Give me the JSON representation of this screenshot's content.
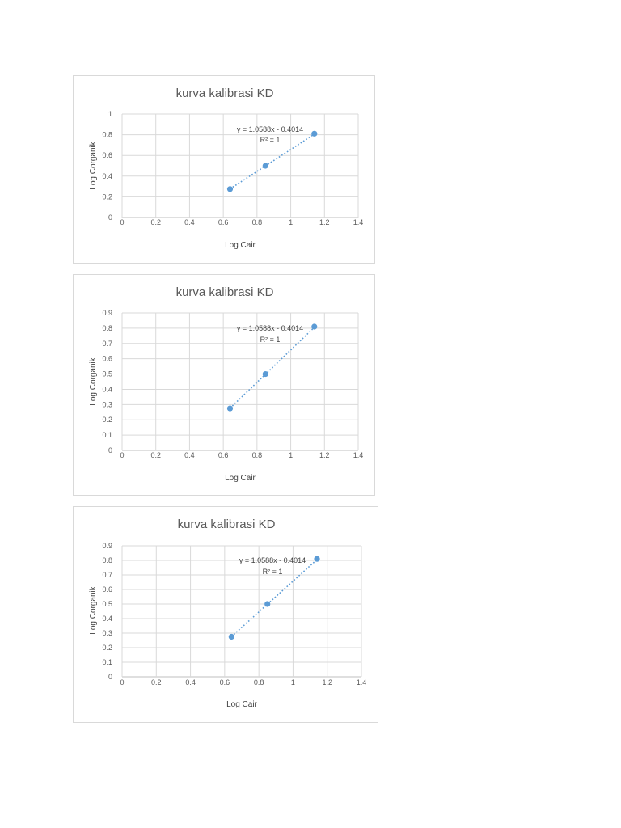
{
  "colors": {
    "series": "#5b9bd5",
    "grid": "#d9d9d9",
    "text": "#595959",
    "border": "#d9d9d9"
  },
  "chart_data": [
    {
      "type": "scatter",
      "title": "kurva kalibrasi KD",
      "xlabel": "Log Cair",
      "ylabel": "Log Corganik",
      "xlim": [
        0,
        1.4
      ],
      "ylim": [
        0,
        1
      ],
      "xticks": [
        0,
        0.2,
        0.4,
        0.6,
        0.8,
        1,
        1.2,
        1.4
      ],
      "xtick_labels": [
        "0",
        "0.2",
        "0.4",
        "0.6",
        "0.8",
        "1",
        "1.2",
        "1.4"
      ],
      "yticks": [
        0,
        0.2,
        0.4,
        0.6,
        0.8,
        1
      ],
      "ytick_labels": [
        "0",
        "0.2",
        "0.4",
        "0.6",
        "0.8",
        "1"
      ],
      "grid": true,
      "x": [
        0.64,
        0.85,
        1.14
      ],
      "y": [
        0.275,
        0.5,
        0.81
      ],
      "trendline": {
        "type": "linear",
        "slope": 1.0588,
        "intercept": -0.4014,
        "style": "dotted"
      },
      "equation_text": "y = 1.0588x - 0.4014",
      "r2_text": "R² = 1"
    },
    {
      "type": "scatter",
      "title": "kurva kalibrasi KD",
      "xlabel": "Log Cair",
      "ylabel": "Log Corganik",
      "xlim": [
        0,
        1.4
      ],
      "ylim": [
        0,
        0.9
      ],
      "xticks": [
        0,
        0.2,
        0.4,
        0.6,
        0.8,
        1,
        1.2,
        1.4
      ],
      "xtick_labels": [
        "0",
        "0.2",
        "0.4",
        "0.6",
        "0.8",
        "1",
        "1.2",
        "1.4"
      ],
      "yticks": [
        0,
        0.1,
        0.2,
        0.3,
        0.4,
        0.5,
        0.6,
        0.7,
        0.8,
        0.9
      ],
      "ytick_labels": [
        "0",
        "0.1",
        "0.2",
        "0.3",
        "0.4",
        "0.5",
        "0.6",
        "0.7",
        "0.8",
        "0.9"
      ],
      "grid": true,
      "x": [
        0.64,
        0.85,
        1.14
      ],
      "y": [
        0.275,
        0.5,
        0.81
      ],
      "trendline": {
        "type": "linear",
        "slope": 1.0588,
        "intercept": -0.4014,
        "style": "dotted"
      },
      "equation_text": "y = 1.0588x - 0.4014",
      "r2_text": "R² = 1"
    },
    {
      "type": "scatter",
      "title": "kurva kalibrasi KD",
      "xlabel": "Log Cair",
      "ylabel": "Log Corganik",
      "xlim": [
        0,
        1.4
      ],
      "ylim": [
        0,
        0.9
      ],
      "xticks": [
        0,
        0.2,
        0.4,
        0.6,
        0.8,
        1,
        1.2,
        1.4
      ],
      "xtick_labels": [
        "0",
        "0.2",
        "0.4",
        "0.6",
        "0.8",
        "1",
        "1.2",
        "1.4"
      ],
      "yticks": [
        0,
        0.1,
        0.2,
        0.3,
        0.4,
        0.5,
        0.6,
        0.7,
        0.8,
        0.9
      ],
      "ytick_labels": [
        "0",
        "0.1",
        "0.2",
        "0.3",
        "0.4",
        "0.5",
        "0.6",
        "0.7",
        "0.8",
        "0.9"
      ],
      "grid": true,
      "x": [
        0.64,
        0.85,
        1.14
      ],
      "y": [
        0.275,
        0.5,
        0.81
      ],
      "trendline": {
        "type": "linear",
        "slope": 1.0588,
        "intercept": -0.4014,
        "style": "dotted"
      },
      "equation_text": "y = 1.0588x - 0.4014",
      "r2_text": "R² = 1"
    }
  ]
}
